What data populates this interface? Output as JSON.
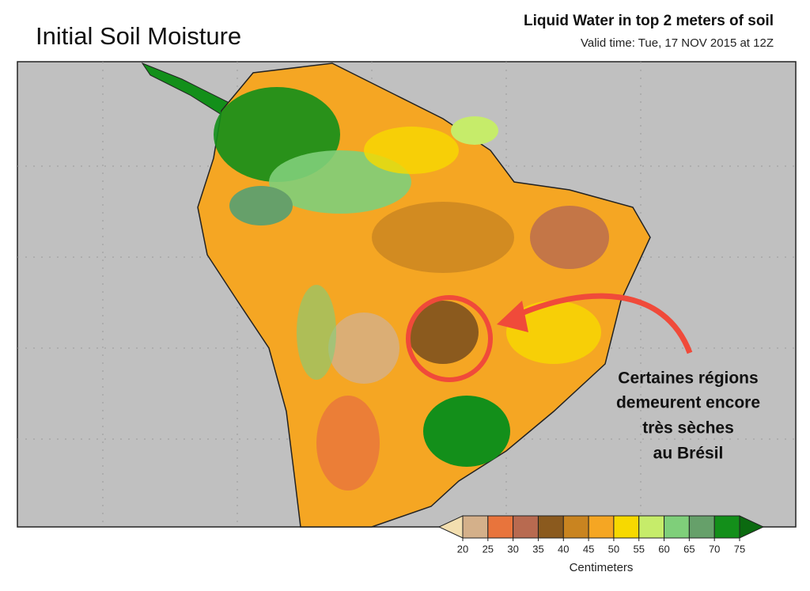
{
  "header": {
    "title": "Initial Soil Moisture",
    "subtitle": "Liquid Water in top 2 meters of soil",
    "valid_time": "Valid time: Tue, 17 NOV 2015 at 12Z"
  },
  "annotation": {
    "lines": [
      "Certaines régions",
      "demeurent encore",
      "très sèches",
      "au Brésil"
    ]
  },
  "colorbar": {
    "ticks": [
      20,
      25,
      30,
      35,
      40,
      45,
      50,
      55,
      60,
      65,
      70,
      75
    ],
    "colors": [
      "#f3dfb0",
      "#d4b08a",
      "#e8743c",
      "#b86a50",
      "#8b5a1e",
      "#c98420",
      "#f5a623",
      "#f7d900",
      "#c6ec6a",
      "#7fcf7a",
      "#66a06a",
      "#138f1a",
      "#0b6a10"
    ],
    "label": "Centimeters"
  }
}
